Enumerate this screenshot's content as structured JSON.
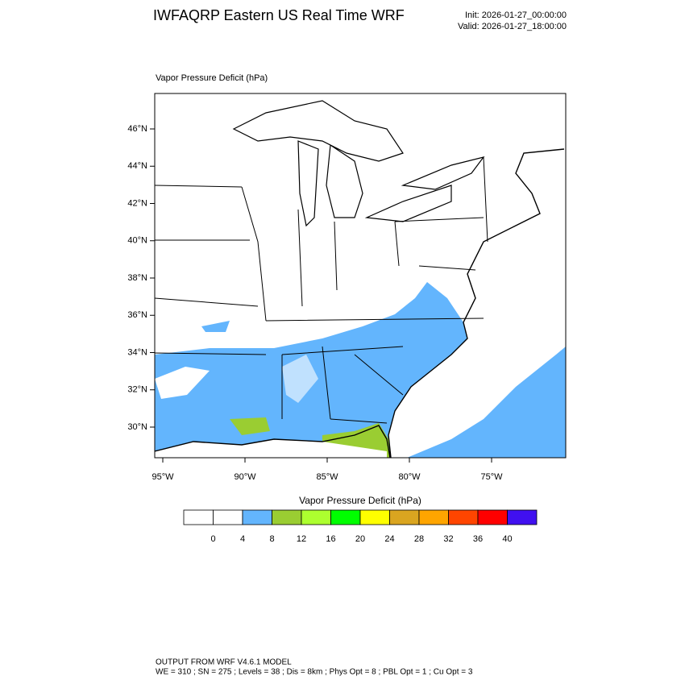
{
  "header": {
    "title": "IWFAQRP Eastern US Real Time WRF",
    "init": "Init: 2026-01-27_00:00:00",
    "valid": "Valid: 2026-01-27_18:00:00"
  },
  "map": {
    "field_label": "Vapor Pressure Deficit   (hPa)",
    "lat_labels": [
      "46°N",
      "44°N",
      "42°N",
      "40°N",
      "38°N",
      "36°N",
      "34°N",
      "32°N",
      "30°N"
    ],
    "lon_labels": [
      "95°W",
      "90°W",
      "85°W",
      "80°W",
      "75°W"
    ]
  },
  "colorbar": {
    "label": "Vapor Pressure Deficit  (hPa)",
    "ticks": [
      0,
      4,
      8,
      12,
      16,
      20,
      24,
      28,
      32,
      36,
      40
    ],
    "colors": [
      "#ffffff",
      "#ffffff",
      "#63b5fd",
      "#9acd32",
      "#adff2f",
      "#00ff00",
      "#ffff00",
      "#daa520",
      "#ffa500",
      "#ff4500",
      "#ff0000",
      "#4010f0"
    ]
  },
  "footer": {
    "line1": "OUTPUT FROM WRF V4.6.1 MODEL",
    "line2": "WE = 310 ; SN = 275 ; Levels = 38 ; Dis = 8km ; Phys Opt = 8 ; PBL Opt = 1 ; Cu Opt = 3"
  }
}
